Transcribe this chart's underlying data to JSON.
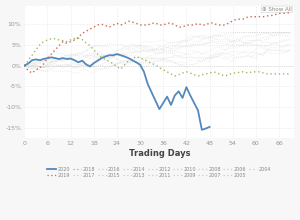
{
  "title": "",
  "xlabel": "Trading Days",
  "ylabel": "",
  "xlim": [
    0,
    70
  ],
  "ylim": [
    -0.175,
    0.145
  ],
  "yticks": [
    -0.15,
    -0.1,
    -0.05,
    0.0,
    0.05,
    0.1
  ],
  "ytick_labels": [
    "-15%",
    "-10%",
    "-5%",
    "0%",
    "5%",
    "10%"
  ],
  "xticks": [
    0,
    6,
    12,
    18,
    24,
    30,
    36,
    42,
    48,
    54,
    60,
    66
  ],
  "background_color": "#f7f7f7",
  "plot_bg_color": "#ffffff",
  "grid_color": "#e0e0e0",
  "annotation_text": "Show All",
  "series_2020": {
    "color": "#5588bb",
    "linestyle": "solid",
    "linewidth": 1.3,
    "data": [
      0.0,
      0.005,
      0.013,
      0.015,
      0.013,
      0.016,
      0.018,
      0.02,
      0.018,
      0.016,
      0.018,
      0.016,
      0.017,
      0.013,
      0.008,
      0.012,
      0.003,
      -0.002,
      0.006,
      0.012,
      0.018,
      0.022,
      0.025,
      0.025,
      0.028,
      0.025,
      0.022,
      0.018,
      0.013,
      0.008,
      0.002,
      -0.015,
      -0.045,
      -0.065,
      -0.085,
      -0.105,
      -0.09,
      -0.075,
      -0.095,
      -0.072,
      -0.062,
      -0.078,
      -0.052,
      -0.072,
      -0.09,
      -0.108,
      -0.155,
      -0.152,
      -0.148
    ]
  },
  "series_2019": {
    "color": "#cc6655",
    "linestyle": "dotted",
    "linewidth": 1.0,
    "data": [
      0.0,
      -0.012,
      -0.018,
      -0.01,
      -0.006,
      0.004,
      0.018,
      0.028,
      0.038,
      0.048,
      0.058,
      0.054,
      0.058,
      0.062,
      0.068,
      0.078,
      0.083,
      0.088,
      0.093,
      0.098,
      0.1,
      0.097,
      0.093,
      0.098,
      0.102,
      0.098,
      0.102,
      0.107,
      0.105,
      0.102,
      0.098,
      0.098,
      0.098,
      0.102,
      0.103,
      0.098,
      0.098,
      0.102,
      0.103,
      0.098,
      0.093,
      0.093,
      0.098,
      0.098,
      0.098,
      0.102,
      0.098,
      0.098,
      0.103,
      0.103,
      0.098,
      0.098,
      0.098,
      0.103,
      0.108,
      0.112,
      0.112,
      0.113,
      0.118,
      0.118,
      0.118,
      0.118,
      0.118,
      0.12,
      0.121,
      0.123,
      0.126,
      0.126,
      0.127,
      0.128
    ]
  },
  "series_2018": {
    "color": "#99bb66",
    "linestyle": "dotted",
    "linewidth": 1.0,
    "data": [
      0.0,
      0.012,
      0.025,
      0.038,
      0.05,
      0.058,
      0.062,
      0.065,
      0.065,
      0.062,
      0.06,
      0.058,
      0.062,
      0.065,
      0.066,
      0.063,
      0.055,
      0.048,
      0.038,
      0.028,
      0.02,
      0.015,
      0.01,
      0.005,
      -0.003,
      -0.008,
      0.002,
      0.012,
      0.017,
      0.022,
      0.018,
      0.015,
      0.01,
      0.005,
      0.002,
      -0.005,
      -0.01,
      -0.015,
      -0.02,
      -0.025,
      -0.022,
      -0.018,
      -0.015,
      -0.018,
      -0.022,
      -0.025,
      -0.022,
      -0.02,
      -0.018,
      -0.015,
      -0.018,
      -0.022,
      -0.025,
      -0.022,
      -0.018,
      -0.018,
      -0.015,
      -0.015,
      -0.018,
      -0.015,
      -0.015,
      -0.015,
      -0.018,
      -0.02,
      -0.02,
      -0.02,
      -0.02,
      -0.02,
      -0.02,
      -0.02
    ]
  },
  "faint_color": "#cccccc",
  "legend_entries": [
    {
      "label": "2020",
      "color": "#5588bb",
      "linestyle": "solid"
    },
    {
      "label": "2019",
      "color": "#cc6655",
      "linestyle": "dotted"
    },
    {
      "label": "2018",
      "color": "#99bb66",
      "linestyle": "dotted"
    },
    {
      "label": "2017",
      "color": "#cccccc",
      "linestyle": "dotted"
    },
    {
      "label": "2016",
      "color": "#cccccc",
      "linestyle": "dotted"
    },
    {
      "label": "2015",
      "color": "#cccccc",
      "linestyle": "dotted"
    },
    {
      "label": "2014",
      "color": "#cccccc",
      "linestyle": "dotted"
    },
    {
      "label": "2013",
      "color": "#cccccc",
      "linestyle": "dotted"
    },
    {
      "label": "2012",
      "color": "#cccccc",
      "linestyle": "dotted"
    },
    {
      "label": "2011",
      "color": "#cccccc",
      "linestyle": "dotted"
    },
    {
      "label": "2010",
      "color": "#cccccc",
      "linestyle": "dotted"
    },
    {
      "label": "2009",
      "color": "#cccccc",
      "linestyle": "dotted"
    },
    {
      "label": "2008",
      "color": "#cccccc",
      "linestyle": "dotted"
    },
    {
      "label": "2007",
      "color": "#cccccc",
      "linestyle": "dotted"
    },
    {
      "label": "2006",
      "color": "#cccccc",
      "linestyle": "dotted"
    },
    {
      "label": "2005",
      "color": "#cccccc",
      "linestyle": "dotted"
    },
    {
      "label": "2004",
      "color": "#cccccc",
      "linestyle": "dotted"
    }
  ]
}
